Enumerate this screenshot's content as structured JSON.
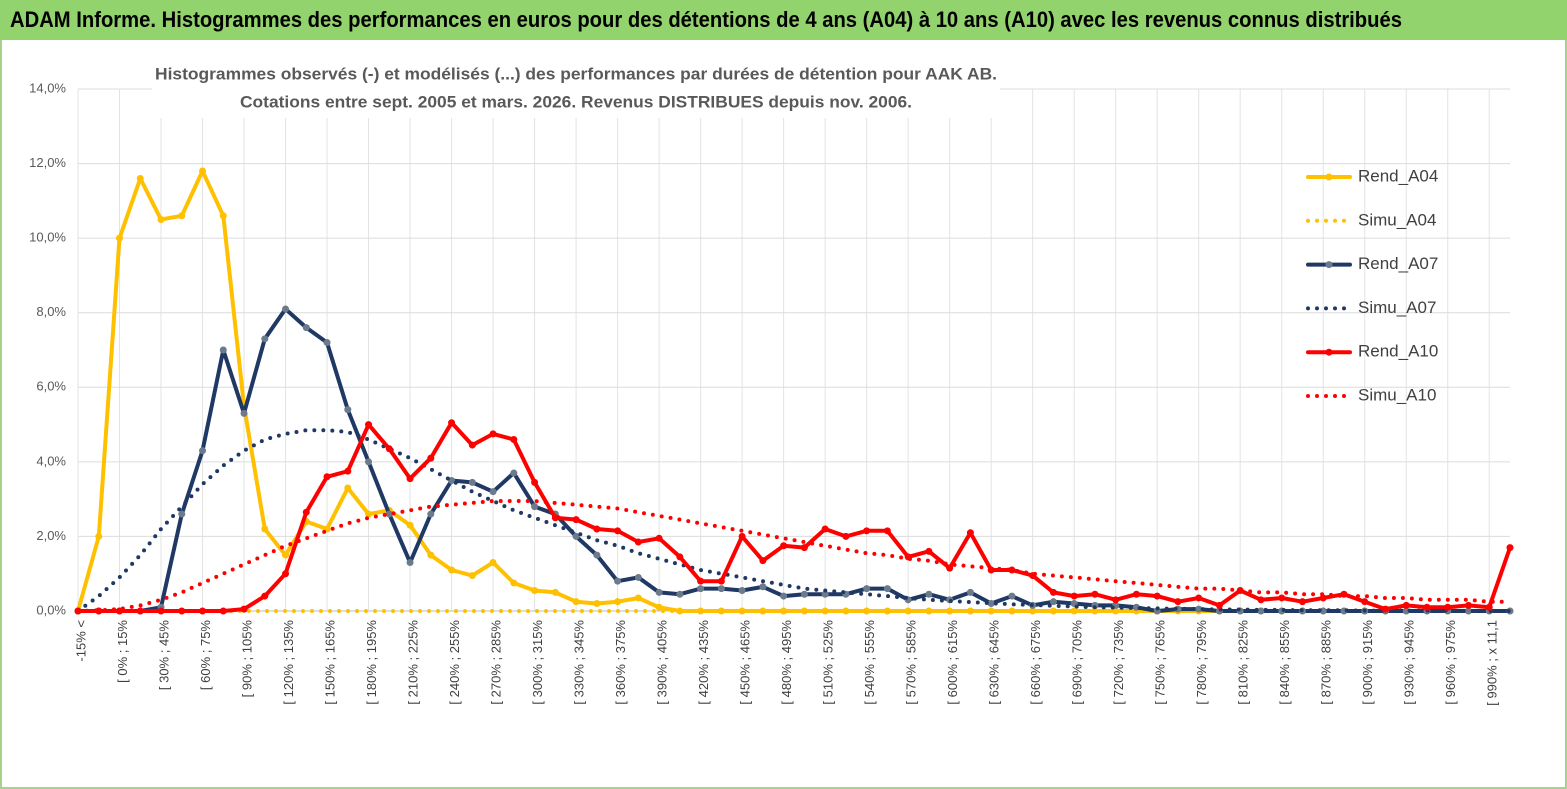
{
  "chart_data": {
    "type": "line",
    "title": "ADAM Informe. Histogrammes des performances en euros pour des détentions de 4 ans (A04) à 10 ans (A10) avec les revenus connus distribués",
    "subtitle": [
      "Histogrammes observés (-) et modélisés (...) des performances par durées de détention pour AAK AB.",
      "Cotations entre sept. 2005 et mars. 2026. Revenus DISTRIBUES depuis nov. 2006."
    ],
    "categories": [
      "-15% <",
      null,
      "[ 0% ; 15%",
      null,
      "[ 30% ; 45%",
      null,
      "[ 60% ; 75%",
      null,
      "[ 90% ; 105%",
      null,
      "[ 120% ; 135%",
      null,
      "[ 150% ; 165%",
      null,
      "[ 180% ; 195%",
      null,
      "[ 210% ; 225%",
      null,
      "[ 240% ; 255%",
      null,
      "[ 270% ; 285%",
      null,
      "[ 300% ; 315%",
      null,
      "[ 330% ; 345%",
      null,
      "[ 360% ; 375%",
      null,
      "[ 390% ; 405%",
      null,
      "[ 420% ; 435%",
      null,
      "[ 450% ; 465%",
      null,
      "[ 480% ; 495%",
      null,
      "[ 510% ; 525%",
      null,
      "[ 540% ; 555%",
      null,
      "[ 570% ; 585%",
      null,
      "[ 600% ; 615%",
      null,
      "[ 630% ; 645%",
      null,
      "[ 660% ; 675%",
      null,
      "[ 690% ; 705%",
      null,
      "[ 720% ; 735%",
      null,
      "[ 750% ; 765%",
      null,
      "[ 780% ; 795%",
      null,
      "[ 810% ; 825%",
      null,
      "[ 840% ; 855%",
      null,
      "[ 870% ; 885%",
      null,
      "[ 900% ; 915%",
      null,
      "[ 930% ; 945%",
      null,
      "[ 960% ; 975%",
      null,
      "[ 990% ; x 11,1",
      null
    ],
    "series": [
      {
        "name": "Rend_A04",
        "color": "#ffc000",
        "line_style": "solid",
        "markers": true,
        "marker_color": "#ffc000",
        "values": [
          0,
          2.0,
          10.0,
          11.6,
          10.5,
          10.6,
          11.8,
          10.6,
          5.5,
          2.2,
          1.5,
          2.4,
          2.2,
          3.3,
          2.6,
          2.7,
          2.3,
          1.5,
          1.1,
          0.95,
          1.3,
          0.75,
          0.55,
          0.5,
          0.25,
          0.2,
          0.25,
          0.35,
          0.1,
          0,
          0,
          0,
          0,
          0,
          0,
          0,
          0,
          0,
          0,
          0,
          0,
          0,
          0,
          0,
          0,
          0,
          0,
          0,
          0,
          0,
          0,
          0,
          0,
          0,
          0,
          0,
          0,
          0,
          0,
          0,
          0,
          0,
          0,
          0,
          0,
          0,
          0,
          0,
          0,
          0
        ]
      },
      {
        "name": "Simu_A04",
        "color": "#ffc000",
        "line_style": "dotted",
        "markers": false,
        "values": [
          0,
          0,
          0,
          0,
          0,
          0,
          0,
          0,
          0,
          0,
          0,
          0,
          0,
          0,
          0,
          0,
          0,
          0,
          0,
          0,
          0,
          0,
          0,
          0,
          0,
          0,
          0,
          0,
          0,
          0,
          0,
          0,
          0,
          0,
          0,
          0,
          0,
          0,
          0,
          0,
          0,
          0,
          0,
          0,
          0,
          0,
          0,
          0,
          0,
          0,
          0,
          0,
          0,
          0,
          0,
          0,
          0,
          0,
          0,
          0,
          0,
          0,
          0,
          0,
          0,
          0,
          0,
          0,
          0,
          0
        ]
      },
      {
        "name": "Rend_A07",
        "color": "#1f3864",
        "line_style": "solid",
        "markers": true,
        "marker_color": "#6b7b8c",
        "values": [
          0,
          0,
          0,
          0,
          0.1,
          2.6,
          4.3,
          7.0,
          5.3,
          7.3,
          8.1,
          7.6,
          7.2,
          5.4,
          4.0,
          2.6,
          1.3,
          2.6,
          3.5,
          3.45,
          3.2,
          3.7,
          2.8,
          2.6,
          2.0,
          1.5,
          0.8,
          0.9,
          0.5,
          0.45,
          0.6,
          0.6,
          0.55,
          0.65,
          0.4,
          0.45,
          0.45,
          0.45,
          0.6,
          0.6,
          0.3,
          0.45,
          0.3,
          0.5,
          0.2,
          0.4,
          0.15,
          0.25,
          0.2,
          0.15,
          0.15,
          0.1,
          0,
          0.05,
          0.05,
          0,
          0,
          0,
          0,
          0,
          0,
          0,
          0,
          0,
          0,
          0,
          0,
          0,
          0,
          0
        ]
      },
      {
        "name": "Simu_A07",
        "color": "#1f3864",
        "line_style": "dotted",
        "markers": false,
        "values": [
          0,
          0.4,
          0.9,
          1.5,
          2.2,
          2.8,
          3.4,
          3.9,
          4.3,
          4.6,
          4.75,
          4.85,
          4.85,
          4.8,
          4.6,
          4.35,
          4.1,
          3.8,
          3.5,
          3.2,
          2.95,
          2.7,
          2.5,
          2.3,
          2.1,
          1.9,
          1.75,
          1.55,
          1.4,
          1.25,
          1.1,
          1.0,
          0.9,
          0.8,
          0.7,
          0.6,
          0.55,
          0.5,
          0.45,
          0.4,
          0.35,
          0.3,
          0.27,
          0.24,
          0.21,
          0.18,
          0.16,
          0.14,
          0.12,
          0.1,
          0.09,
          0.08,
          0.07,
          0.06,
          0.05,
          0.04,
          0.04,
          0.03,
          0.03,
          0.02,
          0.02,
          0.02,
          0.01,
          0.01,
          0.01,
          0.01,
          0.01,
          0,
          0,
          0
        ]
      },
      {
        "name": "Rend_A10",
        "color": "#ff0000",
        "line_style": "solid",
        "markers": true,
        "marker_color": "#ff0000",
        "values": [
          0,
          0,
          0,
          0,
          0,
          0,
          0,
          0,
          0.05,
          0.4,
          1.0,
          2.65,
          3.6,
          3.75,
          5.0,
          4.35,
          3.55,
          4.1,
          5.05,
          4.45,
          4.75,
          4.6,
          3.45,
          2.5,
          2.45,
          2.2,
          2.15,
          1.85,
          1.95,
          1.45,
          0.8,
          0.8,
          2.0,
          1.35,
          1.75,
          1.7,
          2.2,
          2.0,
          2.15,
          2.15,
          1.45,
          1.6,
          1.15,
          2.1,
          1.1,
          1.1,
          0.95,
          0.5,
          0.4,
          0.45,
          0.3,
          0.45,
          0.4,
          0.25,
          0.35,
          0.15,
          0.55,
          0.3,
          0.35,
          0.25,
          0.35,
          0.45,
          0.25,
          0.05,
          0.15,
          0.1,
          0.1,
          0.15,
          0.1,
          1.7
        ]
      },
      {
        "name": "Simu_A10",
        "color": "#ff0000",
        "line_style": "dotted",
        "markers": false,
        "values": [
          0,
          0.02,
          0.05,
          0.15,
          0.3,
          0.5,
          0.75,
          1.0,
          1.25,
          1.5,
          1.75,
          1.95,
          2.15,
          2.35,
          2.5,
          2.6,
          2.7,
          2.8,
          2.85,
          2.9,
          2.95,
          2.95,
          2.95,
          2.9,
          2.85,
          2.8,
          2.75,
          2.65,
          2.55,
          2.45,
          2.35,
          2.25,
          2.15,
          2.05,
          1.95,
          1.85,
          1.75,
          1.65,
          1.55,
          1.5,
          1.4,
          1.35,
          1.25,
          1.2,
          1.15,
          1.1,
          1.0,
          0.95,
          0.9,
          0.85,
          0.8,
          0.75,
          0.7,
          0.65,
          0.6,
          0.6,
          0.55,
          0.5,
          0.5,
          0.45,
          0.45,
          0.4,
          0.4,
          0.35,
          0.35,
          0.3,
          0.3,
          0.3,
          0.25,
          0.25
        ]
      }
    ],
    "ylim": [
      0,
      14
    ],
    "yticks": [
      {
        "value": 0,
        "label": "0,0%"
      },
      {
        "value": 2,
        "label": "2,0%"
      },
      {
        "value": 4,
        "label": "4,0%"
      },
      {
        "value": 6,
        "label": "6,0%"
      },
      {
        "value": 8,
        "label": "8,0%"
      },
      {
        "value": 10,
        "label": "10,0%"
      },
      {
        "value": 12,
        "label": "12,0%"
      },
      {
        "value": 14,
        "label": "14,0%"
      }
    ],
    "grid": true,
    "legend": "right"
  }
}
